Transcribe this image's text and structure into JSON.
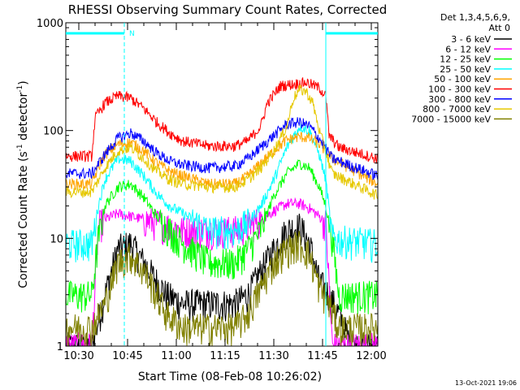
{
  "chart_data": {
    "type": "line",
    "title": "RHESSI Observing Summary Count Rates, Corrected",
    "xlabel": "Start Time (08-Feb-08 10:26:02)",
    "ylabel_main": "Corrected Count Rate (s",
    "ylabel_sup1": "-1",
    "ylabel_mid": " detector",
    "ylabel_sup2": "-1",
    "ylabel_end": ")",
    "yscale": "log",
    "ylim": [
      1,
      1000
    ],
    "xlim_min": [
      26,
      122
    ],
    "xtick_min": [
      30,
      45,
      60,
      75,
      90,
      105,
      120
    ],
    "xtick_labels": [
      "10:30",
      "10:45",
      "11:00",
      "11:15",
      "11:30",
      "11:45",
      "12:00"
    ],
    "ytick_values": [
      1,
      10,
      100,
      1000
    ],
    "ytick_labels": [
      "1",
      "10",
      "100",
      "1000"
    ],
    "legend_header": [
      "Det 1,3,4,5,6,9,",
      "Att 0"
    ],
    "legend_position": "right",
    "footer_date": "13-Oct-2021 19:06",
    "night_marker": "N",
    "night_intervals_min": [
      [
        26,
        44
      ],
      [
        106,
        122
      ]
    ],
    "series": [
      {
        "name": "3 - 6 keV",
        "color": "#000000",
        "x": [
          26,
          34,
          38,
          42,
          46,
          50,
          54,
          57,
          62,
          70,
          78,
          82,
          86,
          90,
          94,
          98,
          101,
          104,
          107,
          110,
          114,
          122
        ],
        "y": [
          1,
          1,
          3,
          8,
          9,
          6,
          4,
          3,
          2.5,
          2.5,
          2.5,
          3,
          5,
          8,
          12,
          13,
          9,
          4,
          3,
          2,
          1,
          1
        ]
      },
      {
        "name": "6 - 12 keV",
        "color": "#ff00ff",
        "x": [
          26,
          34,
          36,
          38,
          42,
          46,
          50,
          54,
          58,
          62,
          70,
          78,
          82,
          86,
          90,
          94,
          98,
          101,
          104,
          106,
          108,
          122
        ],
        "y": [
          1,
          1,
          13,
          15,
          17,
          16,
          15,
          14,
          13,
          12,
          12,
          12,
          13,
          15,
          18,
          21,
          21,
          19,
          16,
          14,
          1,
          1
        ]
      },
      {
        "name": "12 - 25 keV",
        "color": "#00ff00",
        "x": [
          26,
          34,
          36,
          38,
          42,
          46,
          50,
          54,
          58,
          62,
          70,
          78,
          82,
          86,
          90,
          94,
          98,
          101,
          104,
          106,
          108,
          110,
          122
        ],
        "y": [
          3,
          3,
          10,
          20,
          30,
          32,
          24,
          16,
          12,
          9,
          6,
          6,
          8,
          12,
          25,
          40,
          50,
          45,
          30,
          20,
          10,
          3,
          3
        ]
      },
      {
        "name": "25 - 50 keV",
        "color": "#00ffff",
        "x": [
          26,
          34,
          36,
          38,
          42,
          46,
          50,
          54,
          58,
          62,
          70,
          78,
          82,
          86,
          90,
          94,
          98,
          101,
          104,
          106,
          108,
          122
        ],
        "y": [
          9,
          9,
          20,
          35,
          55,
          52,
          38,
          26,
          20,
          17,
          12,
          12,
          14,
          20,
          35,
          70,
          110,
          100,
          60,
          35,
          10,
          9
        ]
      },
      {
        "name": "50 - 100 keV",
        "color": "#ffa500",
        "x": [
          26,
          34,
          36,
          38,
          42,
          46,
          50,
          54,
          58,
          62,
          70,
          78,
          82,
          86,
          90,
          94,
          98,
          101,
          104,
          108,
          122
        ],
        "y": [
          32,
          32,
          45,
          60,
          75,
          78,
          65,
          50,
          42,
          38,
          32,
          32,
          38,
          50,
          65,
          82,
          88,
          85,
          75,
          55,
          32
        ]
      },
      {
        "name": "100 - 300 keV",
        "color": "#ff0000",
        "x": [
          26,
          34,
          35,
          38,
          42,
          46,
          50,
          54,
          58,
          62,
          70,
          78,
          82,
          86,
          88,
          92,
          96,
          100,
          104,
          106,
          107,
          110,
          122
        ],
        "y": [
          58,
          58,
          130,
          180,
          210,
          200,
          160,
          120,
          95,
          80,
          72,
          72,
          80,
          110,
          180,
          260,
          270,
          280,
          250,
          210,
          90,
          70,
          55
        ]
      },
      {
        "name": "300 - 800 keV",
        "color": "#0000ff",
        "x": [
          26,
          34,
          38,
          42,
          46,
          50,
          54,
          58,
          62,
          70,
          78,
          82,
          86,
          90,
          94,
          98,
          101,
          104,
          108,
          122
        ],
        "y": [
          40,
          40,
          60,
          85,
          95,
          80,
          62,
          52,
          48,
          45,
          47,
          55,
          70,
          90,
          115,
          120,
          110,
          85,
          55,
          38
        ]
      },
      {
        "name": "800 - 7000 keV",
        "color": "#e6c800",
        "x": [
          26,
          34,
          38,
          42,
          46,
          50,
          54,
          58,
          62,
          70,
          78,
          82,
          86,
          90,
          94,
          96,
          98,
          100,
          102,
          104,
          108,
          122
        ],
        "y": [
          27,
          27,
          45,
          65,
          70,
          55,
          42,
          35,
          32,
          30,
          30,
          35,
          45,
          65,
          110,
          200,
          240,
          230,
          180,
          100,
          40,
          25
        ]
      },
      {
        "name": "7000 - 15000 keV",
        "color": "#808000",
        "x": [
          26,
          34,
          38,
          42,
          46,
          50,
          54,
          57,
          62,
          70,
          78,
          82,
          86,
          90,
          94,
          98,
          101,
          104,
          107,
          110,
          114,
          122
        ],
        "y": [
          1.5,
          1.5,
          2.5,
          6,
          7,
          5,
          3,
          2,
          1.5,
          1.5,
          1.5,
          2,
          3.5,
          6,
          8,
          9,
          7,
          3.5,
          2.5,
          1.5,
          1.5,
          1.5
        ]
      }
    ]
  }
}
